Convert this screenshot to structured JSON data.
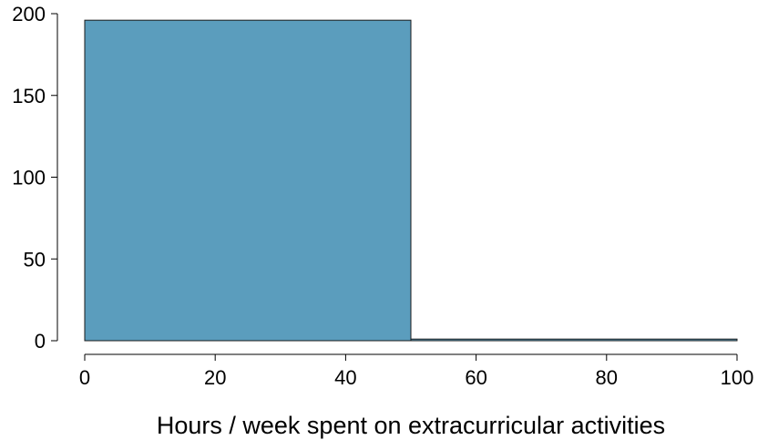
{
  "chart_data": {
    "type": "bar",
    "subtype": "histogram",
    "bins": [
      {
        "x0": 0,
        "x1": 50,
        "count": 196
      },
      {
        "x0": 50,
        "x1": 100,
        "count": 1
      }
    ],
    "xlabel": "Hours / week spent on extracurricular activities",
    "ylabel": "",
    "xlim": [
      0,
      100
    ],
    "ylim": [
      0,
      200
    ],
    "xticks": [
      0,
      20,
      40,
      60,
      80,
      100
    ],
    "yticks": [
      0,
      50,
      100,
      150,
      200
    ],
    "grid": false,
    "legend": "none",
    "colors": {
      "bar_fill": "#5b9dbd",
      "bar_stroke": "#1a1a1a",
      "axis": "#000000"
    }
  }
}
